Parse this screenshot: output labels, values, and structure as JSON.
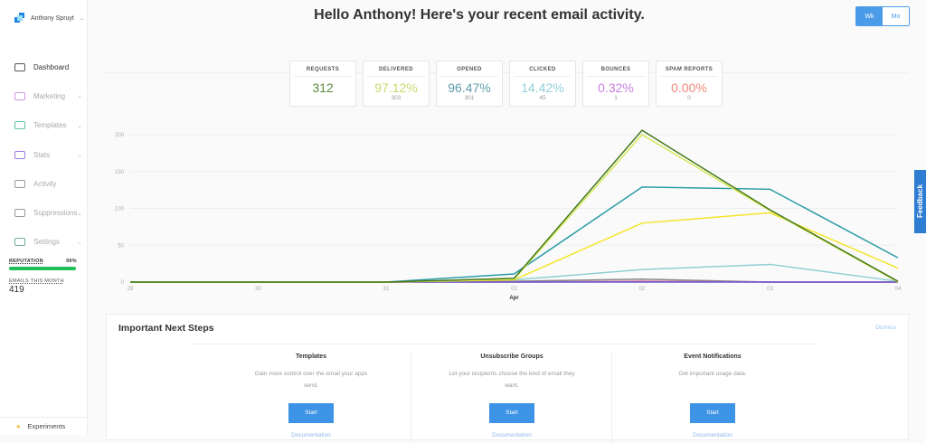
{
  "account": {
    "name": "Anthony Spruyt"
  },
  "sidebar": {
    "items": [
      {
        "label": "Dashboard",
        "icon": "gauge-icon",
        "chevron": false,
        "color": "#555"
      },
      {
        "label": "Marketing",
        "icon": "megaphone-icon",
        "chevron": true,
        "color": "#c99ad9"
      },
      {
        "label": "Templates",
        "icon": "templates-icon",
        "chevron": true,
        "color": "#5ec49a"
      },
      {
        "label": "Stats",
        "icon": "stats-icon",
        "chevron": true,
        "color": "#9b7be0"
      },
      {
        "label": "Activity",
        "icon": "activity-icon",
        "chevron": false,
        "color": "#999"
      },
      {
        "label": "Suppressions",
        "icon": "suppressions-icon",
        "chevron": true,
        "color": "#999"
      },
      {
        "label": "Settings",
        "icon": "settings-icon",
        "chevron": true,
        "color": "#7a9"
      }
    ],
    "reputation_label": "REPUTATION",
    "reputation_value": "99%",
    "reputation_fraction": 0.99,
    "emails_label": "EMAILS THIS MONTH",
    "emails_value": "419",
    "experiments": "Experiments"
  },
  "header": {
    "title": "Hello Anthony! Here's your recent email activity.",
    "toggle": [
      "Wk",
      "Mo"
    ],
    "active": "Wk"
  },
  "stats": [
    {
      "label": "REQUESTS",
      "value": "312",
      "sub": "",
      "color": "#5a8a3a"
    },
    {
      "label": "DELIVERED",
      "value": "97.12%",
      "sub": "303",
      "color": "#c5dc6a"
    },
    {
      "label": "OPENED",
      "value": "96.47%",
      "sub": "301",
      "color": "#5f9eab"
    },
    {
      "label": "CLICKED",
      "value": "14.42%",
      "sub": "45",
      "color": "#8fd0d8"
    },
    {
      "label": "BOUNCES",
      "value": "0.32%",
      "sub": "1",
      "color": "#c77fe0"
    },
    {
      "label": "SPAM REPORTS",
      "value": "0.00%",
      "sub": "0",
      "color": "#f08a7a"
    }
  ],
  "chart_data": {
    "type": "line",
    "x": [
      "29",
      "30",
      "31",
      "01",
      "02",
      "03",
      "04"
    ],
    "x_month_label": "Apr",
    "yticks": [
      0,
      50,
      100,
      150,
      200
    ],
    "ylim": [
      0,
      210
    ],
    "grid": true,
    "series": [
      {
        "color": "#8fcfd3",
        "values": [
          0,
          0,
          0,
          3,
          17,
          24,
          1
        ]
      },
      {
        "color": "#888888",
        "values": [
          0,
          0,
          0,
          1,
          4,
          0,
          0
        ]
      },
      {
        "color": "#d35fa0",
        "values": [
          0,
          0,
          0,
          0,
          1,
          0,
          0
        ]
      },
      {
        "color": "#6a5acd",
        "values": [
          0,
          0,
          0,
          0,
          0,
          0,
          0
        ]
      },
      {
        "color": "#f5e52a",
        "values": [
          0,
          0,
          0,
          3,
          80,
          94,
          19
        ]
      },
      {
        "color": "#2a9ca6",
        "values": [
          0,
          0,
          0,
          11,
          129,
          126,
          33
        ]
      },
      {
        "color": "#d7e85a",
        "values": [
          0,
          0,
          0,
          4,
          200,
          97,
          0
        ]
      },
      {
        "color": "#467a1e",
        "values": [
          0,
          0,
          0,
          5,
          206,
          98,
          1
        ]
      }
    ]
  },
  "feedback": "Feedback",
  "next_steps": {
    "title": "Important Next Steps",
    "dismiss": "Dismiss",
    "cards": [
      {
        "title": "Templates",
        "text": "Gain more control over the email your apps send.",
        "button": "Start",
        "link": "Documentation"
      },
      {
        "title": "Unsubscribe Groups",
        "text": "Let your recipients choose the kind of email they want.",
        "button": "Start",
        "link": "Documentation"
      },
      {
        "title": "Event Notifications",
        "text": "Get important usage data.",
        "button": "Start",
        "link": "Documentation"
      }
    ]
  }
}
